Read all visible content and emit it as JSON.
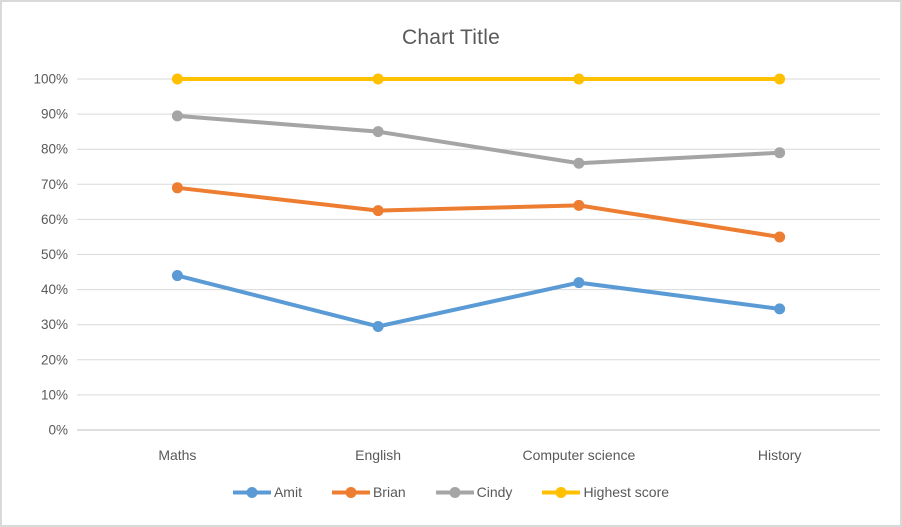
{
  "chart_data": {
    "type": "line",
    "title": "Chart Title",
    "categories": [
      "Maths",
      "English",
      "Computer science",
      "History"
    ],
    "series": [
      {
        "name": "Amit",
        "color": "#5B9BD5",
        "values": [
          44,
          29.5,
          42,
          34.5
        ]
      },
      {
        "name": "Brian",
        "color": "#ED7D31",
        "values": [
          69,
          62.5,
          64,
          55
        ]
      },
      {
        "name": "Cindy",
        "color": "#A5A5A5",
        "values": [
          89.5,
          85,
          76,
          79
        ]
      },
      {
        "name": "Highest score",
        "color": "#FFC000",
        "values": [
          100,
          100,
          100,
          100
        ]
      }
    ],
    "y_axis": {
      "min": 0,
      "max": 100,
      "step": 10,
      "tick_labels": [
        "0%",
        "10%",
        "20%",
        "30%",
        "40%",
        "50%",
        "60%",
        "70%",
        "80%",
        "90%",
        "100%"
      ]
    },
    "xlabel": "",
    "ylabel": "",
    "grid": true,
    "legend_position": "bottom",
    "colors": {
      "text": "#595959",
      "gridline": "#D9D9D9",
      "axis_line": "#BFBFBF",
      "background": "#FFFFFF",
      "frame_border": "#D9D9D9"
    }
  }
}
